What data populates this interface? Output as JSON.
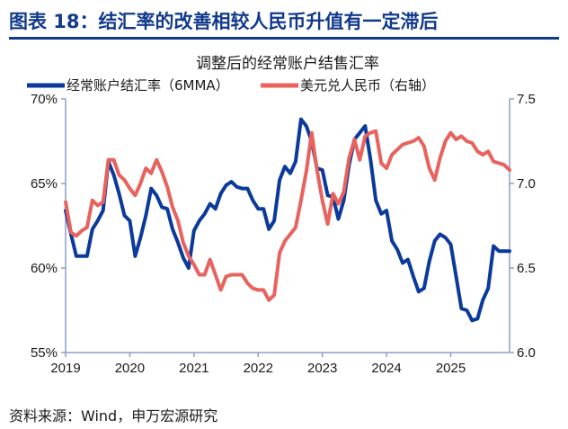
{
  "header": {
    "title": "图表 18：结汇率的改善相较人民币升值有一定滞后"
  },
  "source": "资料来源：Wind，申万宏源研究",
  "colors": {
    "header": "#123a8c",
    "series_blue": "#0b3a9b",
    "series_red": "#e8625e",
    "axis": "#8aa0c8"
  },
  "chart_data": {
    "type": "line",
    "title": "调整后的经常账户结售汇率",
    "legend_position": "top",
    "grid": false,
    "x_start": "2019-01",
    "x_end": "2025-12",
    "x_frequency": "monthly",
    "x_ticks": [
      "2019",
      "2020",
      "2021",
      "2022",
      "2023",
      "2024",
      "2025"
    ],
    "y_left": {
      "ylim": [
        55,
        70
      ],
      "ticks": [
        "55%",
        "60%",
        "65%",
        "70%"
      ],
      "tick_values": [
        55,
        60,
        65,
        70
      ]
    },
    "y_right": {
      "ylim": [
        6.0,
        7.5
      ],
      "ticks": [
        "6.0",
        "6.5",
        "7.0",
        "7.5"
      ],
      "tick_values": [
        6.0,
        6.5,
        7.0,
        7.5
      ]
    },
    "series": [
      {
        "name": "经常账户结汇率（6MMA）",
        "axis": "left",
        "unit": "%",
        "values": [
          63.4,
          62.0,
          60.7,
          60.7,
          60.7,
          62.3,
          62.8,
          63.4,
          66.3,
          65.5,
          64.4,
          63.1,
          62.8,
          60.7,
          61.8,
          63.1,
          64.7,
          64.3,
          63.6,
          63.5,
          62.3,
          61.5,
          60.6,
          60.0,
          62.2,
          62.8,
          63.2,
          63.8,
          63.5,
          64.4,
          64.9,
          65.1,
          64.8,
          64.7,
          64.7,
          64.0,
          63.5,
          63.5,
          62.3,
          62.8,
          65.2,
          66.0,
          65.6,
          66.3,
          68.8,
          68.4,
          67.5,
          65.9,
          65.8,
          64.3,
          64.2,
          62.9,
          64.0,
          66.1,
          67.6,
          68.0,
          68.4,
          66.4,
          64.0,
          63.2,
          63.4,
          61.6,
          61.1,
          60.3,
          60.5,
          59.5,
          58.6,
          58.8,
          60.4,
          61.6,
          62.0,
          61.8,
          61.4,
          59.5,
          57.6,
          57.5,
          56.9,
          57.0,
          58.1,
          58.8,
          61.3,
          61.0,
          61.0,
          61.0
        ]
      },
      {
        "name": "美元兑人民币（右轴）",
        "axis": "right",
        "values": [
          6.89,
          6.71,
          6.69,
          6.72,
          6.74,
          6.9,
          6.87,
          6.89,
          7.14,
          7.14,
          7.05,
          7.02,
          6.97,
          6.93,
          7.0,
          7.09,
          7.06,
          7.14,
          7.07,
          6.98,
          6.86,
          6.78,
          6.65,
          6.57,
          6.52,
          6.46,
          6.46,
          6.55,
          6.46,
          6.37,
          6.45,
          6.46,
          6.46,
          6.46,
          6.41,
          6.38,
          6.37,
          6.37,
          6.31,
          6.34,
          6.59,
          6.66,
          6.7,
          6.74,
          6.9,
          7.07,
          7.3,
          7.08,
          6.9,
          6.76,
          6.94,
          6.88,
          6.95,
          7.15,
          7.26,
          7.14,
          7.28,
          7.3,
          7.31,
          7.12,
          7.09,
          7.17,
          7.2,
          7.23,
          7.24,
          7.25,
          7.27,
          7.22,
          7.09,
          7.02,
          7.15,
          7.25,
          7.3,
          7.26,
          7.28,
          7.25,
          7.24,
          7.19,
          7.17,
          7.19,
          7.13,
          7.12,
          7.11,
          7.08
        ]
      }
    ]
  }
}
